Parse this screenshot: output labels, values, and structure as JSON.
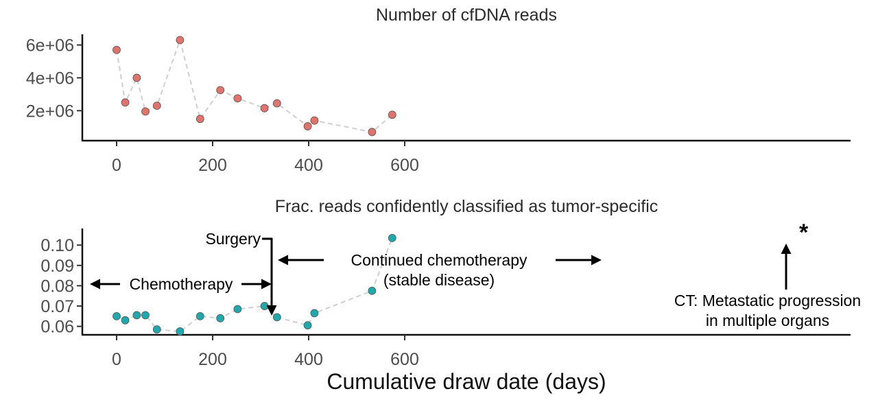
{
  "chart_data": [
    {
      "type": "scatter",
      "title": "Number of cfDNA reads",
      "x_unit": "days",
      "x": [
        0,
        18,
        42,
        60,
        84,
        132,
        174,
        216,
        252,
        308,
        334,
        398,
        412,
        532,
        574
      ],
      "y": [
        5700000,
        2500000,
        4000000,
        1950000,
        2300000,
        6300000,
        1500000,
        3250000,
        2750000,
        2150000,
        2450000,
        1050000,
        1400000,
        700000,
        1750000
      ],
      "xlim": [
        -30,
        630
      ],
      "ylim": [
        300000,
        6900000
      ],
      "xticks": [
        0,
        200,
        400,
        600
      ],
      "xtick_labels": [
        "0",
        "200",
        "400",
        "600"
      ],
      "yticks": [
        2000000,
        4000000,
        6000000
      ],
      "ytick_labels": [
        "2e+06",
        "4e+06",
        "6e+06"
      ],
      "point_color": "#e0736c",
      "line_style": "dashed",
      "line_color": "#cfcfcf"
    },
    {
      "type": "scatter",
      "title": "Frac. reads confidently classified as tumor-specific",
      "xlabel": "Cumulative draw date (days)",
      "x_unit": "days",
      "x": [
        0,
        18,
        42,
        60,
        84,
        132,
        174,
        216,
        252,
        308,
        334,
        398,
        412,
        532,
        574
      ],
      "y": [
        0.065,
        0.063,
        0.0655,
        0.0655,
        0.0585,
        0.0575,
        0.065,
        0.064,
        0.0685,
        0.07,
        0.0645,
        0.0605,
        0.0665,
        0.0775,
        0.1035
      ],
      "xlim": [
        -30,
        630
      ],
      "ylim": [
        0.0555,
        0.1065
      ],
      "xticks": [
        0,
        200,
        400,
        600
      ],
      "xtick_labels": [
        "0",
        "200",
        "400",
        "600"
      ],
      "yticks": [
        0.06,
        0.07,
        0.08,
        0.09,
        0.1
      ],
      "ytick_labels": [
        "0.06",
        "0.07",
        "0.08",
        "0.09",
        "0.10"
      ],
      "point_color": "#1fa9ad",
      "line_style": "dashed",
      "line_color": "#cfcfcf",
      "annotations": {
        "surgery": "Surgery",
        "chemotherapy": "Chemotherapy",
        "continued_line1": "Continued chemotherapy",
        "continued_line2": "(stable disease)",
        "ct_line1": "CT: Metastatic progression",
        "ct_line2": "in multiple organs",
        "star": "*"
      }
    }
  ]
}
